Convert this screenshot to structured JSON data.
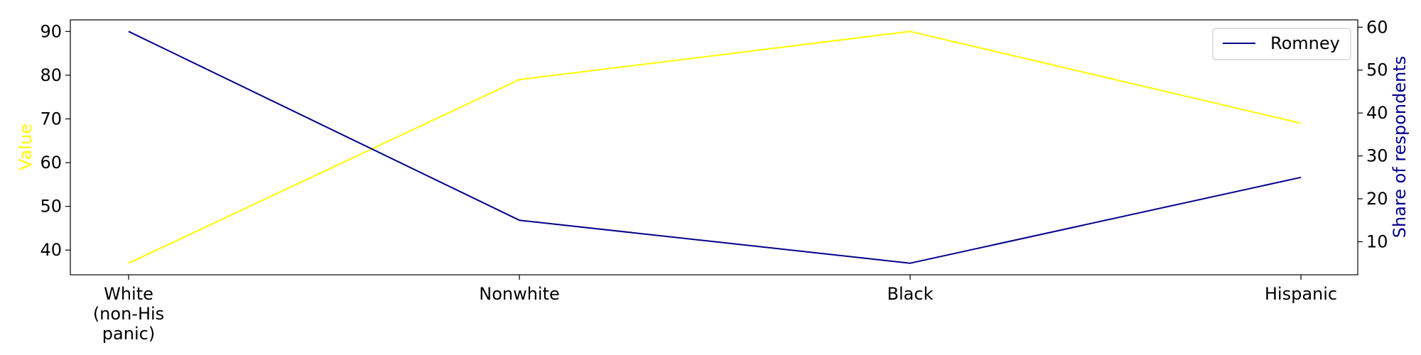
{
  "chart_data": {
    "type": "line",
    "categories": [
      "White\n(non-His\npanic)",
      "Nonwhite",
      "Black",
      "Hispanic"
    ],
    "series": [
      {
        "axis": "left",
        "color": "#ffff00",
        "values": [
          37,
          79,
          90,
          69
        ]
      },
      {
        "name": "Romney",
        "axis": "right",
        "color": "#00008b",
        "values": [
          59,
          15,
          5,
          25
        ]
      }
    ],
    "left_axis": {
      "label": "Value",
      "color": "#ffff00",
      "ticks": [
        40,
        50,
        60,
        70,
        80,
        90
      ],
      "range": [
        34.35,
        92.65
      ]
    },
    "right_axis": {
      "label": "Share of respondents",
      "color": "#00008b",
      "ticks": [
        10,
        20,
        30,
        40,
        50,
        60
      ],
      "range": [
        2.3,
        61.7
      ]
    },
    "legend": {
      "position": "top-right",
      "entries": [
        "Romney"
      ]
    },
    "grid": false
  }
}
